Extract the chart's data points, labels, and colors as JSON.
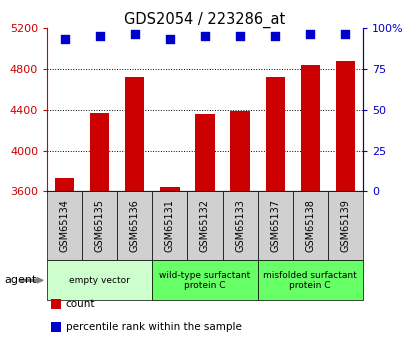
{
  "title": "GDS2054 / 223286_at",
  "samples": [
    "GSM65134",
    "GSM65135",
    "GSM65136",
    "GSM65131",
    "GSM65132",
    "GSM65133",
    "GSM65137",
    "GSM65138",
    "GSM65139"
  ],
  "counts": [
    3730,
    4370,
    4720,
    3640,
    4360,
    4385,
    4720,
    4830,
    4870
  ],
  "percentiles": [
    93,
    95,
    96,
    93,
    95,
    95,
    95,
    96,
    96
  ],
  "ylim_left": [
    3600,
    5200
  ],
  "ylim_right": [
    0,
    100
  ],
  "yticks_left": [
    3600,
    4000,
    4400,
    4800,
    5200
  ],
  "yticks_right": [
    0,
    25,
    50,
    75,
    100
  ],
  "ytick_labels_right": [
    "0",
    "25",
    "50",
    "75",
    "100%"
  ],
  "bar_color": "#cc0000",
  "dot_color": "#0000cc",
  "groups": [
    {
      "label": "empty vector",
      "indices": [
        0,
        1,
        2
      ],
      "color": "#ccffcc"
    },
    {
      "label": "wild-type surfactant\nprotein C",
      "indices": [
        3,
        4,
        5
      ],
      "color": "#66ff66"
    },
    {
      "label": "misfolded surfactant\nprotein C",
      "indices": [
        6,
        7,
        8
      ],
      "color": "#66ff66"
    }
  ],
  "agent_label": "agent",
  "legend_items": [
    {
      "label": "count",
      "color": "#cc0000"
    },
    {
      "label": "percentile rank within the sample",
      "color": "#0000cc"
    }
  ],
  "background_color": "#ffffff",
  "plot_bg_color": "#ffffff",
  "sample_box_color": "#d0d0d0",
  "tick_label_color_left": "#cc0000",
  "tick_label_color_right": "#0000cc",
  "title_color": "#000000",
  "bar_width": 0.55,
  "grid_color": "#000000",
  "dot_size": 35
}
